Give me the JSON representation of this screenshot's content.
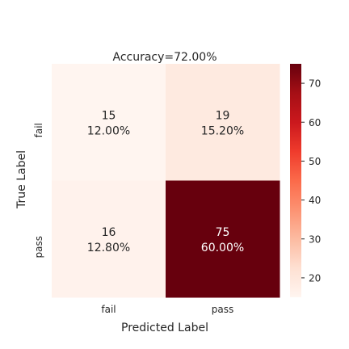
{
  "chart_data": {
    "type": "heatmap",
    "title": "Accuracy=72.00%",
    "xlabel": "Predicted Label",
    "ylabel": "True Label",
    "x_categories": [
      "fail",
      "pass"
    ],
    "y_categories": [
      "fail",
      "pass"
    ],
    "counts": [
      [
        15,
        19
      ],
      [
        16,
        75
      ]
    ],
    "cell_labels": [
      [
        "12.00%",
        "15.20%"
      ],
      [
        "12.80%",
        "60.00%"
      ]
    ],
    "colormap": "Reds",
    "colorbar": {
      "min": 15,
      "max": 75,
      "ticks": [
        20,
        30,
        40,
        50,
        60,
        70
      ]
    }
  }
}
